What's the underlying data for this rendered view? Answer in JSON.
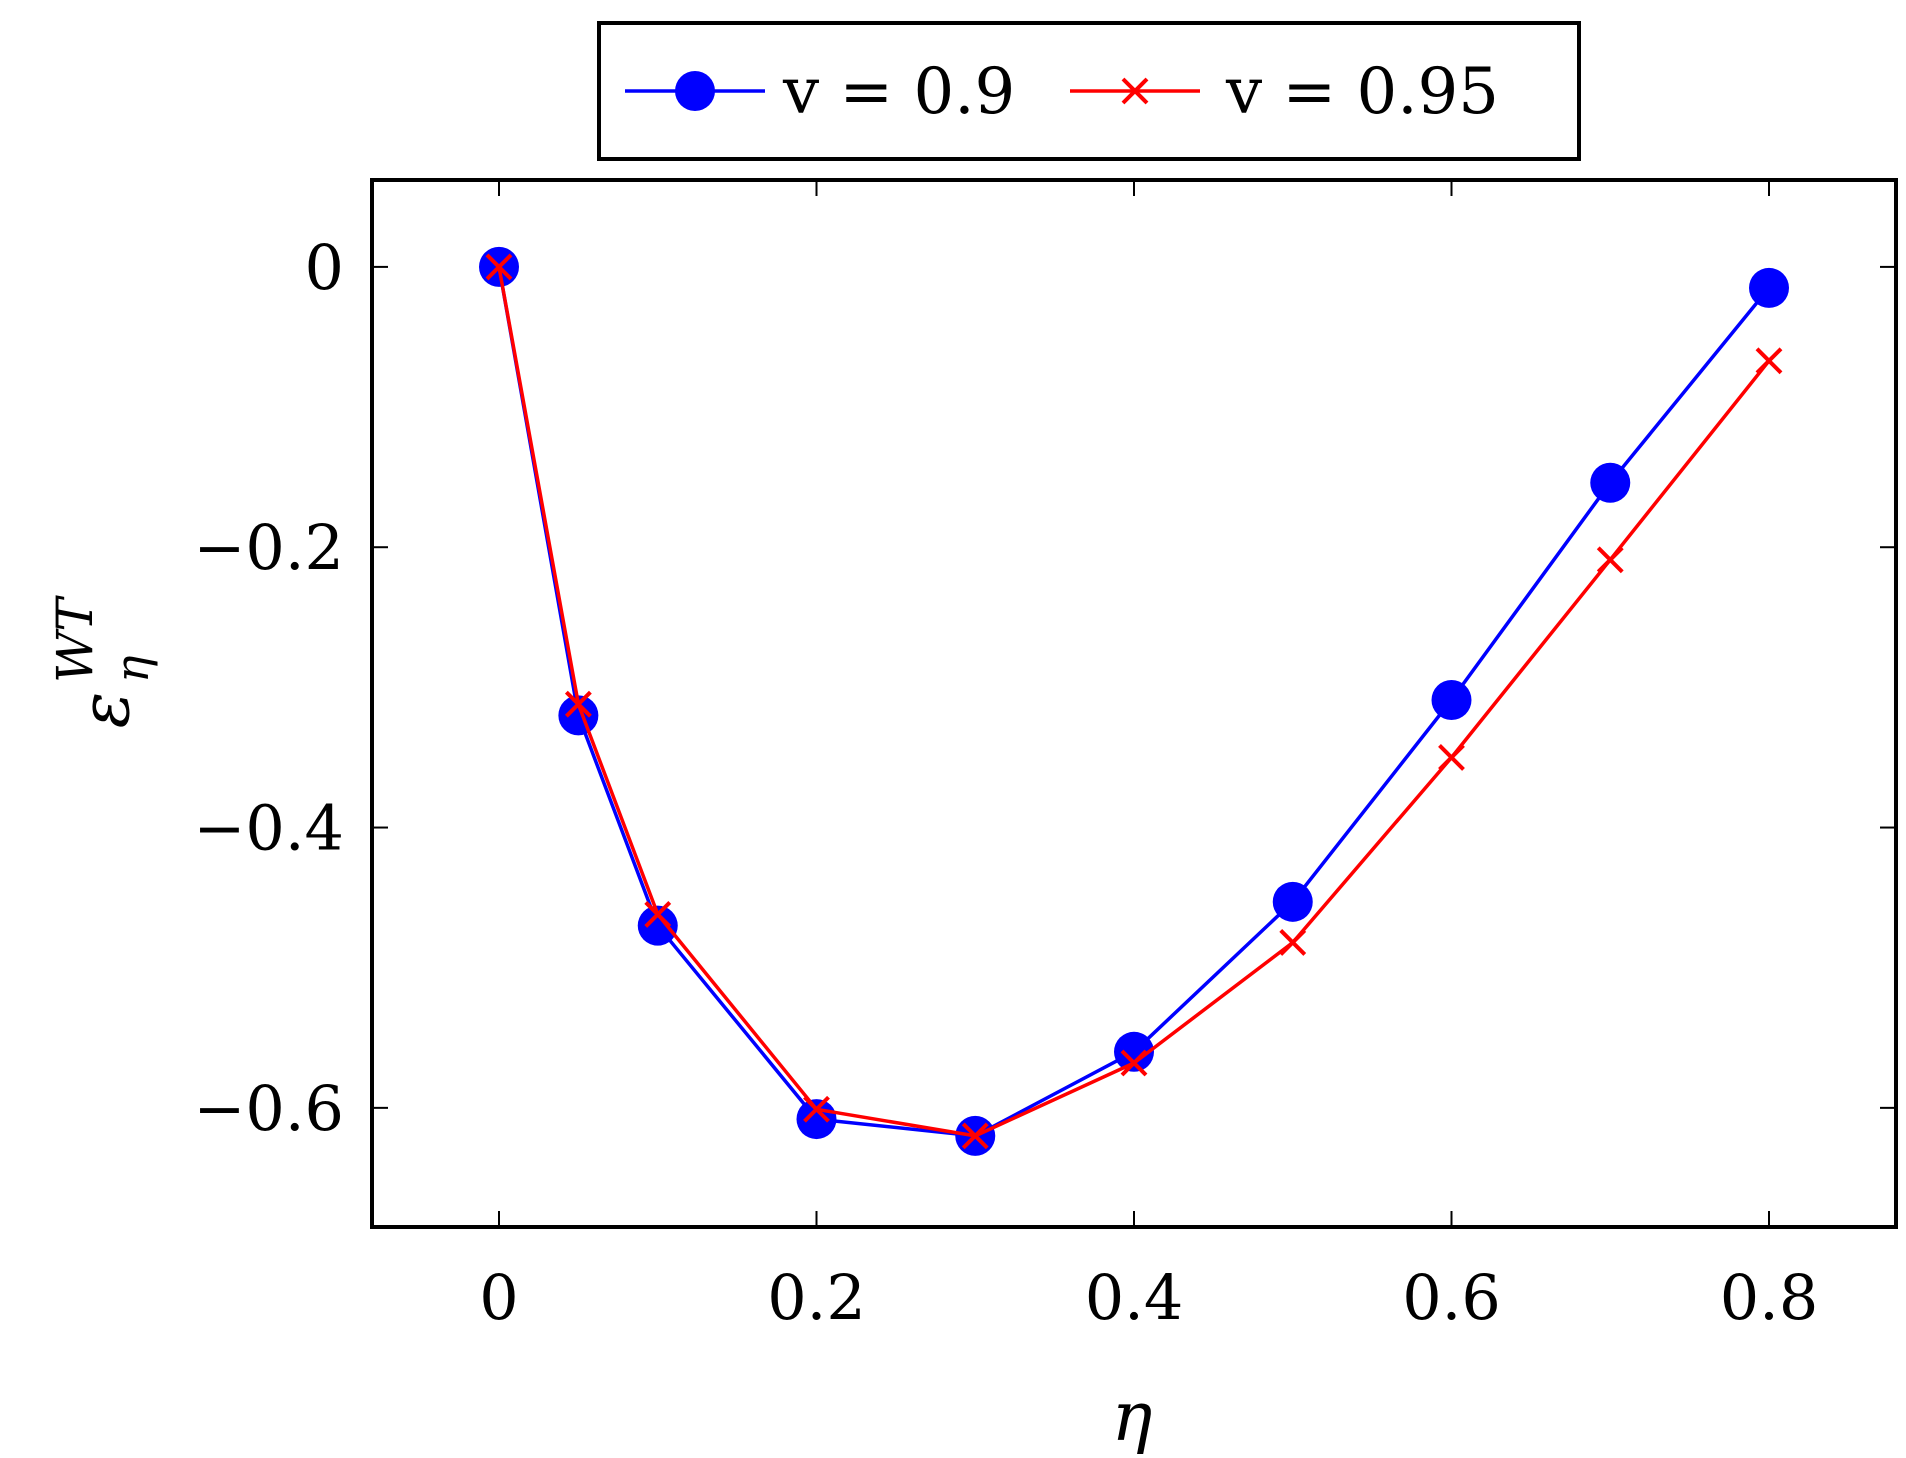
{
  "chart_data": {
    "type": "line",
    "x": [
      0,
      0.05,
      0.1,
      0.2,
      0.3,
      0.4,
      0.5,
      0.6,
      0.7,
      0.8
    ],
    "series": [
      {
        "name": "v = 0.9",
        "color": "#0000ff",
        "marker": "circle",
        "values": [
          0,
          -0.32,
          -0.47,
          -0.608,
          -0.62,
          -0.56,
          -0.453,
          -0.309,
          -0.154,
          -0.015
        ]
      },
      {
        "name": "v = 0.95",
        "color": "#ff0000",
        "marker": "x",
        "values": [
          0,
          -0.312,
          -0.462,
          -0.601,
          -0.62,
          -0.568,
          -0.482,
          -0.35,
          -0.209,
          -0.067
        ]
      }
    ],
    "xlabel": "η",
    "ylabel_main": "ε",
    "ylabel_sub": "η",
    "ylabel_sup": "WT",
    "xlim": [
      -0.08,
      0.88
    ],
    "ylim": [
      -0.685,
      0.062
    ],
    "xticks": [
      0,
      0.2,
      0.4,
      0.6,
      0.8
    ],
    "xtick_labels": [
      "0",
      "0.2",
      "0.4",
      "0.6",
      "0.8"
    ],
    "yticks": [
      0,
      -0.2,
      -0.4,
      -0.6
    ],
    "ytick_labels": [
      "0",
      "−0.2",
      "−0.4",
      "−0.6"
    ],
    "grid": false,
    "legend_position": "top-center-outside"
  }
}
